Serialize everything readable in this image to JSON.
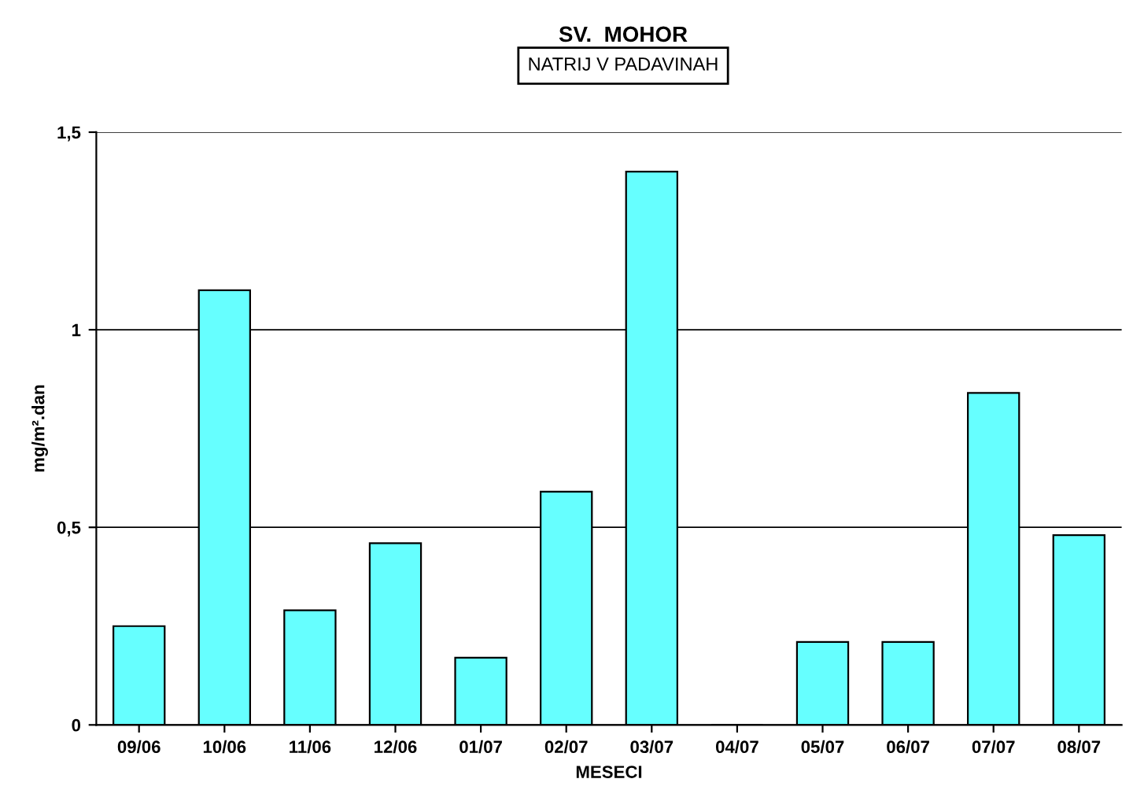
{
  "chart_data": {
    "type": "bar",
    "title": "SV.  MOHOR",
    "subtitle": "NATRIJ V PADAVINAH",
    "xlabel": "MESECI",
    "ylabel": "mg/m².dan",
    "categories": [
      "09/06",
      "10/06",
      "11/06",
      "12/06",
      "01/07",
      "02/07",
      "03/07",
      "04/07",
      "05/07",
      "06/07",
      "07/07",
      "08/07"
    ],
    "values": [
      0.25,
      1.1,
      0.29,
      0.46,
      0.17,
      0.59,
      1.4,
      0,
      0.21,
      0.21,
      0.84,
      0.48
    ],
    "color": "#66ffff",
    "ylim": [
      0,
      1.5
    ],
    "yticks": [
      0,
      {
        "value": 0.5,
        "label": "0,5"
      },
      1,
      {
        "value": 1.5,
        "label": "1,5"
      }
    ],
    "grid": "y"
  }
}
